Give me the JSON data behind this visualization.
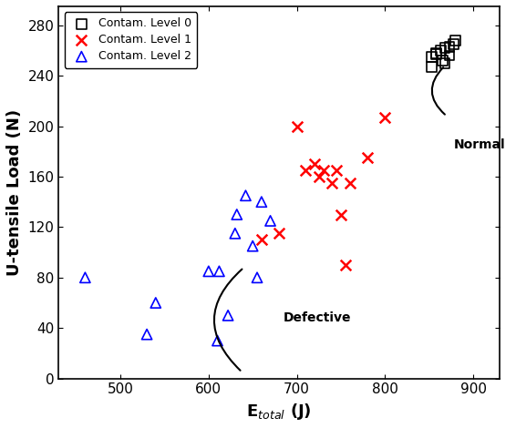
{
  "level0_x": [
    858,
    868,
    878,
    853,
    863,
    873,
    868,
    880,
    858,
    873,
    853,
    865
  ],
  "level0_y": [
    258,
    262,
    265,
    255,
    260,
    263,
    250,
    268,
    257,
    256,
    247,
    252
  ],
  "level1_x": [
    660,
    680,
    700,
    710,
    720,
    725,
    730,
    740,
    745,
    750,
    755,
    760,
    780,
    800
  ],
  "level1_y": [
    110,
    115,
    200,
    165,
    170,
    160,
    165,
    155,
    165,
    130,
    90,
    155,
    175,
    207
  ],
  "level2_x": [
    460,
    530,
    540,
    600,
    610,
    612,
    622,
    630,
    632,
    642,
    650,
    655,
    660,
    670
  ],
  "level2_y": [
    80,
    35,
    60,
    85,
    30,
    85,
    50,
    115,
    130,
    145,
    105,
    80,
    140,
    125
  ],
  "xlabel": "E$_{total}$ (J)",
  "ylabel": "U-tensile Load (N)",
  "xlim": [
    430,
    930
  ],
  "ylim": [
    0,
    295
  ],
  "xticks": [
    500,
    600,
    700,
    800,
    900
  ],
  "yticks": [
    0,
    40,
    80,
    120,
    160,
    200,
    240,
    280
  ],
  "level0_color": "black",
  "level1_color": "red",
  "level2_color": "blue",
  "legend_labels": [
    "Contam. Level 0",
    "Contam. Level 1",
    "Contam. Level 2"
  ],
  "annotation_defective": "Defective",
  "annotation_normal": "Normal"
}
